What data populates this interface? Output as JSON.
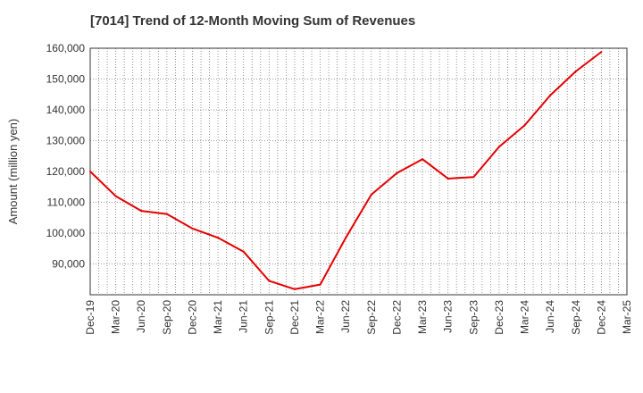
{
  "chart_data": {
    "type": "line",
    "title": "[7014]  Trend of 12-Month Moving Sum of Revenues",
    "xlabel": "",
    "ylabel": "Amount (million yen)",
    "ylim": [
      80000,
      160000
    ],
    "yticks": [
      90000,
      100000,
      110000,
      120000,
      130000,
      140000,
      150000,
      160000
    ],
    "ytick_labels": [
      "90,000",
      "100,000",
      "110,000",
      "120,000",
      "130,000",
      "140,000",
      "150,000",
      "160,000"
    ],
    "tick_labels": [
      "Dec-19",
      "Mar-20",
      "Jun-20",
      "Sep-20",
      "Dec-20",
      "Mar-21",
      "Jun-21",
      "Sep-21",
      "Dec-21",
      "Mar-22",
      "Jun-22",
      "Sep-22",
      "Dec-22",
      "Mar-23",
      "Jun-23",
      "Sep-23",
      "Dec-23",
      "Mar-24",
      "Jun-24",
      "Sep-24",
      "Dec-24",
      "Mar-25"
    ],
    "grid": true,
    "series": [
      {
        "color": "#e60000",
        "x": [
          "Dec-19",
          "Mar-20",
          "Jun-20",
          "Sep-20",
          "Dec-20",
          "Mar-21",
          "Jun-21",
          "Sep-21",
          "Dec-21",
          "Mar-22",
          "Jun-22",
          "Sep-22",
          "Dec-22",
          "Mar-23",
          "Jun-23",
          "Sep-23",
          "Dec-23",
          "Mar-24",
          "Jun-24",
          "Sep-24",
          "Dec-24"
        ],
        "values": [
          120000,
          112000,
          107200,
          106200,
          101500,
          98500,
          94000,
          84500,
          81800,
          83300,
          98500,
          112500,
          119500,
          124000,
          117700,
          118200,
          128000,
          135000,
          144700,
          152500,
          158800
        ]
      }
    ]
  }
}
